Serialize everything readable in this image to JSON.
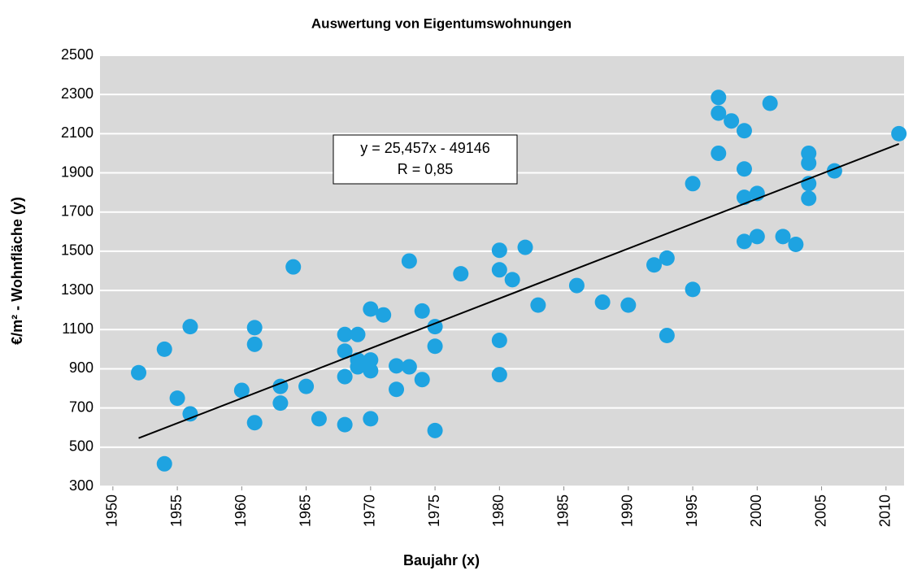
{
  "chart_data": {
    "type": "scatter",
    "title": "Auswertung von Eigentumswohnungen",
    "x_label": "Baujahr (x)",
    "y_label": "€/m² - Wohnfläche (y)",
    "xlim": [
      1949,
      2011.4
    ],
    "ylim": [
      300,
      2500
    ],
    "xticks": [
      1950,
      1955,
      1960,
      1965,
      1970,
      1975,
      1980,
      1985,
      1990,
      1995,
      2000,
      2005,
      2010
    ],
    "yticks": [
      300,
      500,
      700,
      900,
      1100,
      1300,
      1500,
      1700,
      1900,
      2100,
      2300,
      2500
    ],
    "grid": true,
    "background": "#d9d9d9",
    "series": [
      {
        "color": "#1ea3e1",
        "x": [
          1952,
          1954,
          1954,
          1955,
          1956,
          1956,
          1960,
          1961,
          1961,
          1961,
          1963,
          1963,
          1964,
          1965,
          1966,
          1968,
          1968,
          1968,
          1968,
          1969,
          1969,
          1969,
          1970,
          1970,
          1970,
          1970,
          1971,
          1972,
          1972,
          1973,
          1973,
          1974,
          1974,
          1975,
          1975,
          1975,
          1977,
          1980,
          1980,
          1980,
          1980,
          1981,
          1982,
          1983,
          1986,
          1988,
          1990,
          1992,
          1993,
          1993,
          1995,
          1995,
          1997,
          1997,
          1997,
          1998,
          1999,
          1999,
          1999,
          1999,
          2000,
          2000,
          2001,
          2002,
          2003,
          2004,
          2004,
          2004,
          2004,
          2006,
          2011
        ],
        "values": [
          880,
          1000,
          415,
          750,
          1115,
          670,
          790,
          1110,
          1025,
          625,
          810,
          725,
          1420,
          810,
          645,
          1075,
          990,
          860,
          615,
          1075,
          945,
          910,
          1205,
          945,
          890,
          645,
          1175,
          915,
          795,
          1450,
          910,
          1195,
          845,
          1115,
          1015,
          585,
          1385,
          1505,
          1405,
          1045,
          870,
          1355,
          1520,
          1225,
          1325,
          1240,
          1225,
          1430,
          1465,
          1070,
          1845,
          1305,
          2285,
          2205,
          2000,
          2165,
          2115,
          1920,
          1775,
          1550,
          1795,
          1575,
          2255,
          1575,
          1535,
          2000,
          1950,
          1845,
          1770,
          1910,
          2100
        ]
      }
    ],
    "trendline": {
      "slope": 25.457,
      "intercept": -49146,
      "x_range": [
        1952,
        2011
      ],
      "color": "#000000"
    },
    "annotations": [
      "y = 25,457x - 49146",
      "R = 0,85"
    ]
  }
}
